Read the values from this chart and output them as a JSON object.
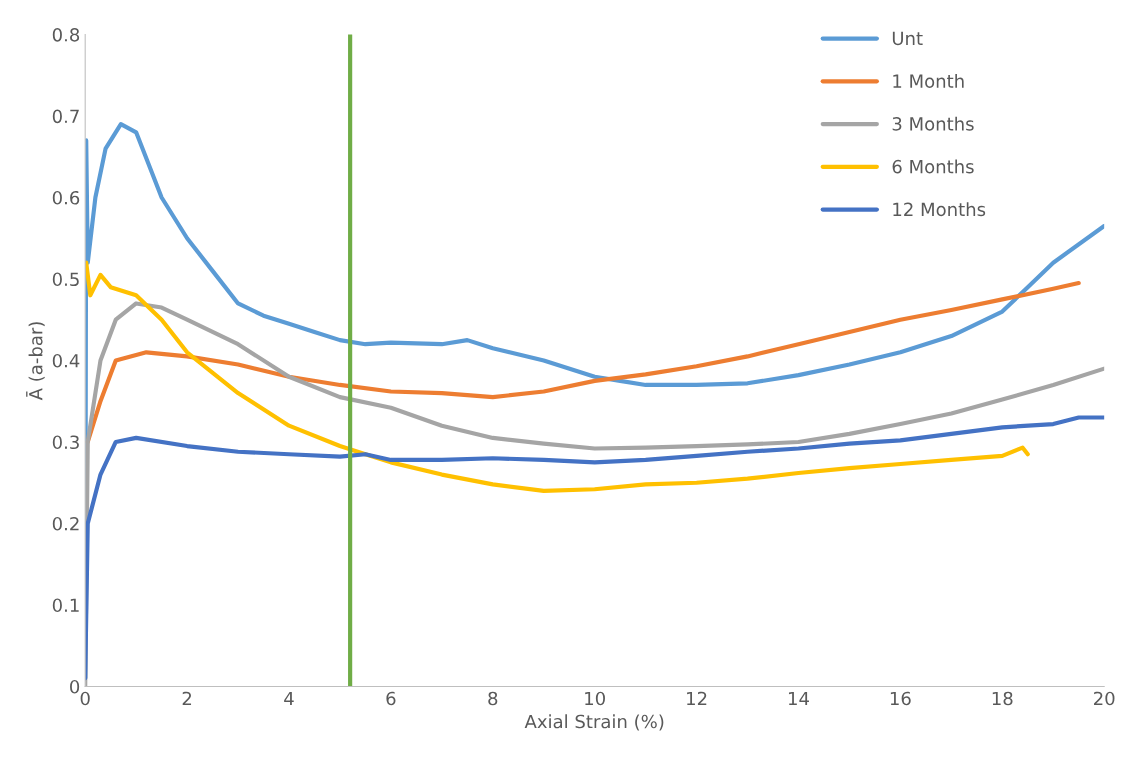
{
  "chart_data": {
    "type": "line",
    "xlabel": "Axial Strain (%)",
    "ylabel": "Ā (a-bar)",
    "xlim": [
      0,
      20
    ],
    "ylim": [
      0,
      0.8
    ],
    "xticks": [
      0,
      2,
      4,
      6,
      8,
      10,
      12,
      14,
      16,
      18,
      20
    ],
    "yticks": [
      0,
      0.1,
      0.2,
      0.3,
      0.4,
      0.5,
      0.6,
      0.7,
      0.8
    ],
    "grid": false,
    "legend": "top right",
    "marker": "none",
    "line_style": "solid",
    "ref_lines": [
      {
        "axis": "x",
        "value": 5.2,
        "color": "#70ad47",
        "line_style": "solid"
      }
    ],
    "series": [
      {
        "name": "Unt",
        "color": "#5b9bd5",
        "x": [
          0,
          0.02,
          0.05,
          0.2,
          0.4,
          0.7,
          1.0,
          1.5,
          2,
          2.5,
          3,
          3.5,
          4,
          4.5,
          5,
          5.5,
          6,
          7,
          7.5,
          8,
          9,
          10,
          10.5,
          11,
          12,
          13,
          14,
          15,
          16,
          17,
          18,
          18.5,
          19,
          20
        ],
        "values": [
          0.01,
          0.67,
          0.52,
          0.6,
          0.66,
          0.69,
          0.68,
          0.6,
          0.55,
          0.51,
          0.47,
          0.455,
          0.445,
          0.435,
          0.425,
          0.42,
          0.422,
          0.42,
          0.425,
          0.415,
          0.4,
          0.38,
          0.375,
          0.37,
          0.37,
          0.372,
          0.382,
          0.395,
          0.41,
          0.43,
          0.46,
          0.49,
          0.52,
          0.565
        ]
      },
      {
        "name": "1 Month",
        "color": "#ed7d31",
        "x": [
          0.05,
          0.3,
          0.6,
          1.2,
          2,
          3,
          4,
          5,
          6,
          7,
          8,
          9,
          10,
          11,
          12,
          13,
          14,
          15,
          16,
          17,
          18,
          19,
          19.5
        ],
        "values": [
          0.3,
          0.35,
          0.4,
          0.41,
          0.405,
          0.395,
          0.38,
          0.37,
          0.362,
          0.36,
          0.355,
          0.362,
          0.375,
          0.383,
          0.393,
          0.405,
          0.42,
          0.435,
          0.45,
          0.462,
          0.475,
          0.488,
          0.495
        ]
      },
      {
        "name": "3 Months",
        "color": "#a5a5a5",
        "x": [
          0,
          0.05,
          0.3,
          0.6,
          1,
          1.5,
          2,
          3,
          4,
          5,
          6,
          7,
          8,
          9,
          10,
          11,
          12,
          13,
          14,
          15,
          16,
          17,
          18,
          19,
          20
        ],
        "values": [
          0.0,
          0.3,
          0.4,
          0.45,
          0.47,
          0.465,
          0.45,
          0.42,
          0.38,
          0.355,
          0.342,
          0.32,
          0.305,
          0.298,
          0.292,
          0.293,
          0.295,
          0.297,
          0.3,
          0.31,
          0.322,
          0.335,
          0.352,
          0.37,
          0.39
        ]
      },
      {
        "name": "6 Months",
        "color": "#ffc000",
        "x": [
          0.02,
          0.1,
          0.3,
          0.5,
          1,
          1.5,
          2,
          3,
          4,
          5,
          5.5,
          6,
          7,
          8,
          9,
          10,
          11,
          12,
          13,
          14,
          15,
          16,
          17,
          18,
          18.4,
          18.5
        ],
        "values": [
          0.52,
          0.48,
          0.505,
          0.49,
          0.48,
          0.45,
          0.41,
          0.36,
          0.32,
          0.295,
          0.285,
          0.275,
          0.26,
          0.248,
          0.24,
          0.242,
          0.248,
          0.25,
          0.255,
          0.262,
          0.268,
          0.273,
          0.278,
          0.283,
          0.293,
          0.285
        ]
      },
      {
        "name": "12 Months",
        "color": "#4472c4",
        "x": [
          0,
          0.05,
          0.3,
          0.6,
          1,
          2,
          3,
          4,
          5,
          5.5,
          6,
          7,
          8,
          9,
          10,
          11,
          12,
          13,
          14,
          15,
          16,
          17,
          18,
          19,
          19.5,
          20
        ],
        "values": [
          0.01,
          0.2,
          0.26,
          0.3,
          0.305,
          0.295,
          0.288,
          0.285,
          0.282,
          0.285,
          0.278,
          0.278,
          0.28,
          0.278,
          0.275,
          0.278,
          0.283,
          0.288,
          0.292,
          0.298,
          0.302,
          0.31,
          0.318,
          0.322,
          0.33,
          0.33
        ]
      }
    ]
  }
}
